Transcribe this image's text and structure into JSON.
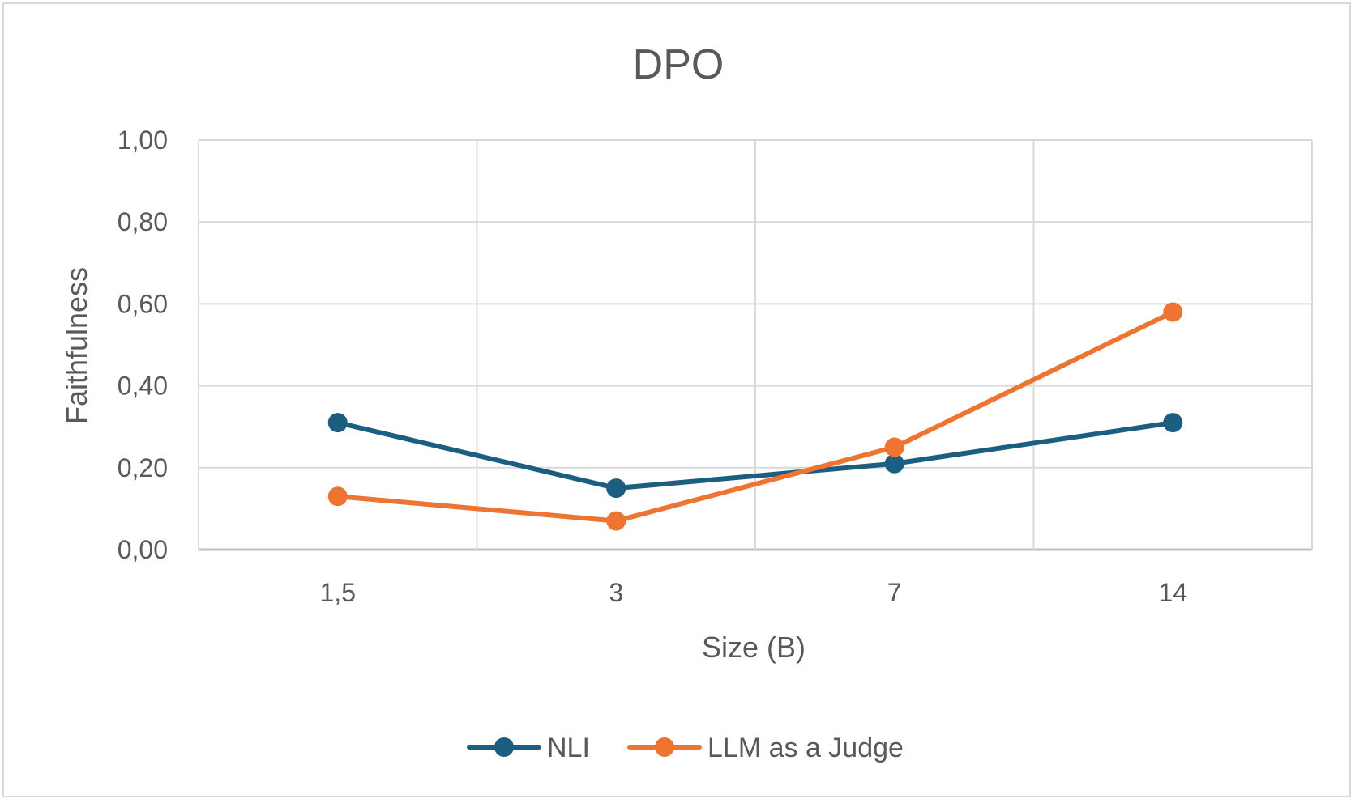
{
  "chart_data": {
    "type": "line",
    "title": "DPO",
    "xlabel": "Size (B)",
    "ylabel": "Faithfulness",
    "categories": [
      "1,5",
      "3",
      "7",
      "14"
    ],
    "y_ticks": [
      "0,00",
      "0,20",
      "0,40",
      "0,60",
      "0,80",
      "1,00"
    ],
    "ylim": [
      0,
      1
    ],
    "grid": true,
    "legend_position": "bottom",
    "series": [
      {
        "name": "NLI",
        "color": "#1b5e80",
        "values": [
          0.31,
          0.15,
          0.21,
          0.31
        ]
      },
      {
        "name": "LLM as a Judge",
        "color": "#ed7431",
        "values": [
          0.13,
          0.07,
          0.25,
          0.58
        ]
      }
    ]
  }
}
